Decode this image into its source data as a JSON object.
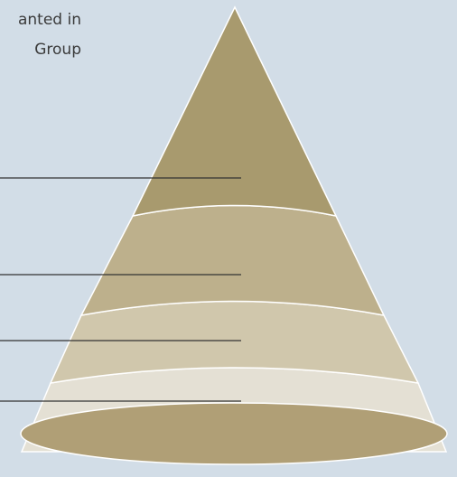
{
  "caption": {
    "line1": "anted in",
    "line2": "Group"
  },
  "colors": {
    "background": "#d2dde7",
    "tier1": "#a89a6e",
    "tier2": "#bdb08c",
    "tier3": "#d0c7ac",
    "tier4": "#e4e0d4",
    "base": "#b09f76",
    "tier_border": "#ffffff",
    "pointer_line": "#333333"
  },
  "tiers": [
    {
      "name": "tier-1",
      "color_key": "tier1"
    },
    {
      "name": "tier-2",
      "color_key": "tier2"
    },
    {
      "name": "tier-3",
      "color_key": "tier3"
    },
    {
      "name": "tier-4",
      "color_key": "tier4"
    }
  ],
  "pointer_count": 4
}
